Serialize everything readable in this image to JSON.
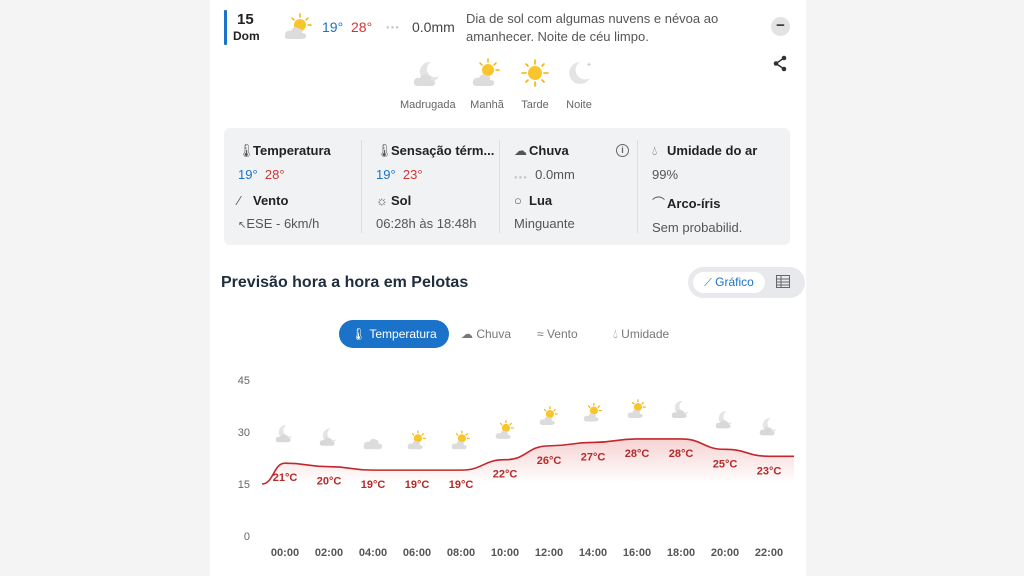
{
  "day": {
    "date_number": "15",
    "weekday": "Dom",
    "icon": "sun-behind-cloud-icon",
    "temp_min": "19°",
    "temp_max": "28°",
    "rain": "0.0mm",
    "description": "Dia de sol com algumas nuvens e névoa ao amanhecer. Noite de céu limpo."
  },
  "periods": [
    {
      "label": "Madrugada",
      "icon": "moon-cloud-icon"
    },
    {
      "label": "Manhã",
      "icon": "sun-cloud-icon"
    },
    {
      "label": "Tarde",
      "icon": "sun-icon"
    },
    {
      "label": "Noite",
      "icon": "moon-icon"
    }
  ],
  "details": {
    "temperature": {
      "label": "Temperatura",
      "min": "19°",
      "max": "28°",
      "icon": "thermometer-icon"
    },
    "feels_like": {
      "label": "Sensação térm...",
      "min": "19°",
      "max": "23°",
      "icon": "feels-like-thermometer-icon"
    },
    "rain": {
      "label": "Chuva",
      "value": "0.0mm",
      "icon": "rain-cloud-icon"
    },
    "humidity": {
      "label": "Umidade do ar",
      "value": "99%",
      "icon": "drop-icon"
    },
    "wind": {
      "label": "Vento",
      "value": "ESE - 6km/h",
      "icon": "wind-icon"
    },
    "sun": {
      "label": "Sol",
      "value": "06:28h às 18:48h",
      "icon": "sun-outline-icon"
    },
    "moon": {
      "label": "Lua",
      "value": "Minguante",
      "icon": "moon-circle-icon"
    },
    "rainbow": {
      "label": "Arco-íris",
      "value": "Sem probabilid.",
      "icon": "rainbow-icon"
    }
  },
  "hourly": {
    "title": "Previsão hora a hora em Pelotas",
    "view_graph_label": "Gráfico",
    "tabs": [
      "Temperatura",
      "Chuva",
      "Vento",
      "Umidade"
    ],
    "active_tab": 0
  },
  "colors": {
    "accent": "#1a73c8",
    "max_temp": "#d23434",
    "line": "#c0282d"
  },
  "chart_data": {
    "type": "area",
    "title": "",
    "xlabel": "",
    "ylabel": "",
    "ylim": [
      0,
      45
    ],
    "yticks": [
      0,
      15,
      30,
      45
    ],
    "x": [
      "00:00",
      "02:00",
      "04:00",
      "06:00",
      "08:00",
      "10:00",
      "12:00",
      "14:00",
      "16:00",
      "18:00",
      "20:00",
      "22:00"
    ],
    "series": [
      {
        "values": [
          21,
          20,
          19,
          19,
          19,
          22,
          26,
          27,
          28,
          28,
          25,
          23
        ]
      }
    ],
    "point_labels": [
      "21°C",
      "20°C",
      "19°C",
      "19°C",
      "19°C",
      "22°C",
      "26°C",
      "27°C",
      "28°C",
      "28°C",
      "25°C",
      "23°C"
    ],
    "icons": [
      "moon-cloud-icon",
      "moon-cloud-icon",
      "cloud-icon",
      "sun-cloud-icon",
      "sun-cloud-icon",
      "sun-cloud-icon",
      "sun-cloud-icon",
      "sun-cloud-icon",
      "sun-cloud-icon",
      "moon-cloud-icon",
      "moon-cloud-icon",
      "moon-cloud-icon"
    ]
  }
}
